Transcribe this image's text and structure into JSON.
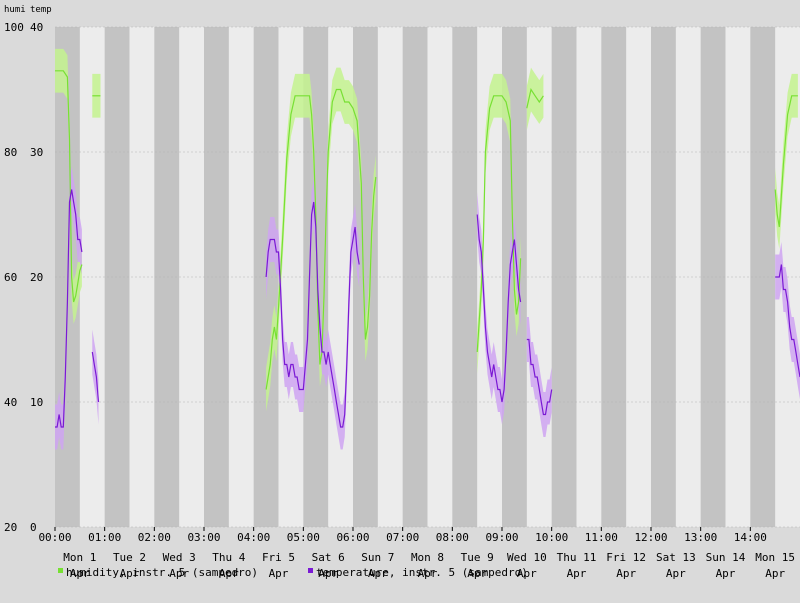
{
  "chart_data": {
    "type": "line",
    "axis_titles": {
      "left": "humi",
      "right": "temp"
    },
    "y_left": {
      "ticks": [
        20,
        40,
        60,
        80,
        100
      ],
      "ylim": [
        20,
        100
      ]
    },
    "y_right": {
      "ticks": [
        0,
        10,
        20,
        30,
        40
      ],
      "ylim": [
        0,
        40
      ]
    },
    "x": {
      "range_hours": [
        0,
        360
      ],
      "tick_labels": [
        "00:00",
        "01:00",
        "02:00",
        "03:00",
        "04:00",
        "05:00",
        "06:00",
        "07:00",
        "08:00",
        "09:00",
        "10:00",
        "11:00",
        "12:00",
        "13:00",
        "14:00"
      ],
      "tick_hours": [
        0,
        24,
        48,
        72,
        96,
        120,
        144,
        168,
        192,
        216,
        240,
        264,
        288,
        312,
        336
      ],
      "day_labels": [
        {
          "day": "Mon 1",
          "month": "Apr",
          "hour": 12
        },
        {
          "day": "Tue 2",
          "month": "Apr",
          "hour": 36
        },
        {
          "day": "Wed 3",
          "month": "Apr",
          "hour": 60
        },
        {
          "day": "Thu 4",
          "month": "Apr",
          "hour": 84
        },
        {
          "day": "Fri 5",
          "month": "Apr",
          "hour": 108
        },
        {
          "day": "Sat 6",
          "month": "Apr",
          "hour": 132
        },
        {
          "day": "Sun 7",
          "month": "Apr",
          "hour": 156
        },
        {
          "day": "Mon 8",
          "month": "Apr",
          "hour": 180
        },
        {
          "day": "Tue 9",
          "month": "Apr",
          "hour": 204
        },
        {
          "day": "Wed 10",
          "month": "Apr",
          "hour": 228
        },
        {
          "day": "Thu 11",
          "month": "Apr",
          "hour": 252
        },
        {
          "day": "Fri 12",
          "month": "Apr",
          "hour": 276
        },
        {
          "day": "Sat 13",
          "month": "Apr",
          "hour": 300
        },
        {
          "day": "Sun 14",
          "month": "Apr",
          "hour": 324
        },
        {
          "day": "Mon 15",
          "month": "Apr",
          "hour": 348
        }
      ],
      "shading": "alternating 12-hour night/day bands"
    },
    "grid": true,
    "legend_placement": "bottom-left",
    "colors": {
      "humidity": "#77e033",
      "humidity_band": "#c4f38f",
      "temperature": "#7a19d4",
      "temperature_band": "#cfa4f2",
      "night": "#c3c3c3",
      "day": "#ececec"
    },
    "series": [
      {
        "name": "humidity, instr. 5 (sampedro)",
        "axis": "left",
        "segments": [
          [
            [
              0,
              93
            ],
            [
              2,
              93
            ],
            [
              4,
              93
            ],
            [
              6,
              92
            ],
            [
              7,
              82
            ],
            [
              8,
              60
            ],
            [
              9,
              56
            ],
            [
              10,
              57
            ],
            [
              11,
              59
            ],
            [
              12,
              61
            ],
            [
              13,
              62
            ]
          ],
          [
            [
              18,
              89
            ],
            [
              20,
              89
            ],
            [
              22,
              89
            ]
          ],
          [
            [
              102,
              42
            ],
            [
              104,
              46
            ],
            [
              105,
              50
            ],
            [
              106,
              52
            ],
            [
              107,
              50
            ],
            [
              108,
              55
            ],
            [
              110,
              66
            ],
            [
              112,
              79
            ],
            [
              114,
              86
            ],
            [
              116,
              89
            ],
            [
              118,
              89
            ],
            [
              120,
              89
            ],
            [
              122,
              89
            ],
            [
              123,
              89
            ],
            [
              124,
              86
            ],
            [
              125,
              80
            ],
            [
              126,
              70
            ],
            [
              127,
              55
            ],
            [
              128,
              46
            ],
            [
              129,
              48
            ],
            [
              130,
              57
            ],
            [
              131,
              70
            ],
            [
              132,
              80
            ],
            [
              134,
              88
            ],
            [
              136,
              90
            ],
            [
              138,
              90
            ],
            [
              140,
              88
            ],
            [
              142,
              88
            ],
            [
              144,
              87
            ],
            [
              146,
              85
            ],
            [
              148,
              75
            ],
            [
              149,
              60
            ],
            [
              150,
              50
            ],
            [
              151,
              52
            ],
            [
              152,
              57
            ],
            [
              153,
              67
            ],
            [
              154,
              73
            ],
            [
              155,
              76
            ]
          ],
          [
            [
              204,
              48
            ],
            [
              206,
              58
            ],
            [
              207,
              66
            ],
            [
              208,
              80
            ],
            [
              210,
              87
            ],
            [
              212,
              89
            ],
            [
              214,
              89
            ],
            [
              216,
              89
            ],
            [
              218,
              88
            ],
            [
              220,
              85
            ],
            [
              221,
              70
            ],
            [
              222,
              58
            ],
            [
              223,
              54
            ],
            [
              224,
              56
            ],
            [
              225,
              63
            ]
          ],
          [
            [
              228,
              87
            ],
            [
              230,
              90
            ],
            [
              232,
              89
            ],
            [
              234,
              88
            ],
            [
              236,
              89
            ]
          ],
          [
            [
              348,
              74
            ],
            [
              349,
              70
            ],
            [
              350,
              68
            ],
            [
              352,
              78
            ],
            [
              354,
              86
            ],
            [
              356,
              89
            ],
            [
              358,
              89
            ],
            [
              359,
              89
            ]
          ]
        ]
      },
      {
        "name": "temperature, instr. 5 (sampedro)",
        "axis": "right",
        "segments": [
          [
            [
              0,
              8
            ],
            [
              1,
              8
            ],
            [
              2,
              9
            ],
            [
              3,
              8
            ],
            [
              4,
              8
            ],
            [
              5,
              12
            ],
            [
              6,
              18
            ],
            [
              7,
              26
            ],
            [
              8,
              27
            ],
            [
              9,
              26
            ],
            [
              10,
              25
            ],
            [
              11,
              23
            ],
            [
              12,
              23
            ],
            [
              13,
              22
            ]
          ],
          [
            [
              18,
              14
            ],
            [
              19,
              13
            ],
            [
              20,
              12
            ],
            [
              21,
              10
            ]
          ],
          [
            [
              102,
              20
            ],
            [
              103,
              22
            ],
            [
              104,
              23
            ],
            [
              105,
              23
            ],
            [
              106,
              23
            ],
            [
              107,
              22
            ],
            [
              108,
              22
            ],
            [
              109,
              19
            ],
            [
              110,
              15
            ],
            [
              111,
              13
            ],
            [
              112,
              13
            ],
            [
              113,
              12
            ],
            [
              114,
              13
            ],
            [
              115,
              13
            ],
            [
              116,
              12
            ],
            [
              117,
              12
            ],
            [
              118,
              11
            ],
            [
              119,
              11
            ],
            [
              120,
              11
            ],
            [
              121,
              13
            ],
            [
              122,
              15
            ],
            [
              123,
              20
            ],
            [
              124,
              25
            ],
            [
              125,
              26
            ],
            [
              126,
              24
            ],
            [
              127,
              19
            ],
            [
              128,
              16
            ],
            [
              129,
              14
            ],
            [
              130,
              14
            ],
            [
              131,
              13
            ],
            [
              132,
              14
            ],
            [
              133,
              13
            ],
            [
              134,
              12
            ],
            [
              135,
              11
            ],
            [
              136,
              10
            ],
            [
              137,
              9
            ],
            [
              138,
              8
            ],
            [
              139,
              8
            ],
            [
              140,
              9
            ],
            [
              141,
              13
            ],
            [
              142,
              18
            ],
            [
              143,
              22
            ],
            [
              144,
              23
            ],
            [
              145,
              24
            ],
            [
              146,
              22
            ],
            [
              147,
              21
            ]
          ],
          [
            [
              204,
              25
            ],
            [
              205,
              23
            ],
            [
              206,
              22
            ],
            [
              207,
              19
            ],
            [
              208,
              16
            ],
            [
              209,
              14
            ],
            [
              210,
              13
            ],
            [
              211,
              12
            ],
            [
              212,
              13
            ],
            [
              213,
              12
            ],
            [
              214,
              11
            ],
            [
              215,
              11
            ],
            [
              216,
              10
            ],
            [
              217,
              11
            ],
            [
              218,
              14
            ],
            [
              219,
              18
            ],
            [
              220,
              21
            ],
            [
              221,
              22
            ],
            [
              222,
              23
            ],
            [
              223,
              21
            ],
            [
              224,
              19
            ],
            [
              225,
              18
            ]
          ],
          [
            [
              228,
              15
            ],
            [
              229,
              15
            ],
            [
              230,
              13
            ],
            [
              231,
              13
            ],
            [
              232,
              12
            ],
            [
              233,
              12
            ],
            [
              234,
              11
            ],
            [
              235,
              10
            ],
            [
              236,
              9
            ],
            [
              237,
              9
            ],
            [
              238,
              10
            ],
            [
              239,
              10
            ],
            [
              240,
              11
            ]
          ],
          [
            [
              348,
              20
            ],
            [
              349,
              20
            ],
            [
              350,
              20
            ],
            [
              351,
              21
            ],
            [
              352,
              19
            ],
            [
              353,
              19
            ],
            [
              354,
              18
            ],
            [
              355,
              16
            ],
            [
              356,
              15
            ],
            [
              357,
              15
            ],
            [
              358,
              14
            ],
            [
              359,
              13
            ],
            [
              360,
              12
            ]
          ]
        ]
      }
    ]
  }
}
